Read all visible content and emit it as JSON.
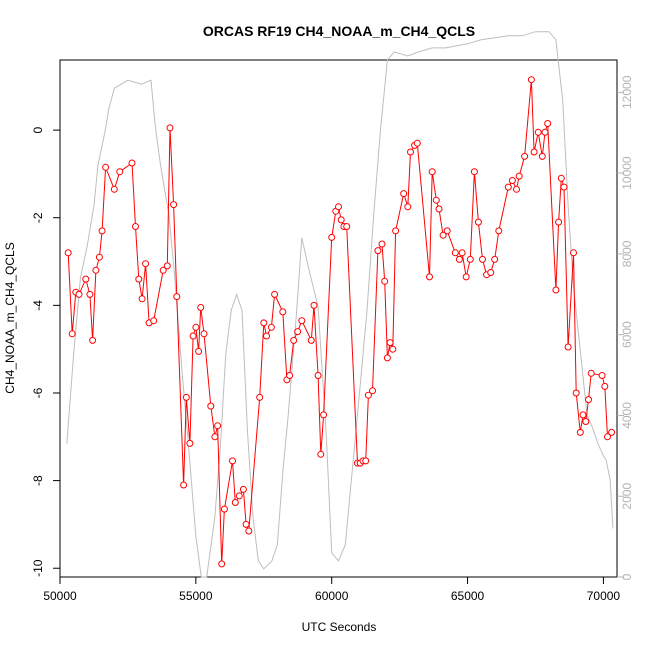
{
  "chart_data": {
    "type": "line",
    "title": "ORCAS RF19 CH4_NOAA_m_CH4_QCLS",
    "xlabel": "UTC Seconds",
    "ylabel": "CH4_NOAA_m_CH4_QCLS",
    "xlim": [
      50000,
      70500
    ],
    "ylim": [
      -10.2,
      1.6
    ],
    "y2lim": [
      0,
      12800
    ],
    "x_ticks": [
      50000,
      55000,
      60000,
      65000,
      70000
    ],
    "y_ticks": [
      0,
      -2,
      -4,
      -6,
      -8,
      -10
    ],
    "y2_ticks": [
      0,
      2000,
      4000,
      6000,
      8000,
      10000,
      12000
    ],
    "colors": {
      "series": "#ff0000",
      "secondary": "#bebebe"
    },
    "series": [
      {
        "values_xy": [
          [
            50300,
            -2.8
          ],
          [
            50450,
            -4.65
          ],
          [
            50580,
            -3.7
          ],
          [
            50700,
            -3.75
          ],
          [
            50950,
            -3.4
          ],
          [
            51100,
            -3.75
          ],
          [
            51200,
            -4.8
          ],
          [
            51320,
            -3.2
          ],
          [
            51450,
            -2.9
          ],
          [
            51550,
            -2.3
          ],
          [
            51680,
            -0.85
          ],
          [
            52000,
            -1.35
          ],
          [
            52200,
            -0.95
          ],
          [
            52650,
            -0.75
          ],
          [
            52780,
            -2.2
          ],
          [
            52900,
            -3.4
          ],
          [
            53020,
            -3.85
          ],
          [
            53150,
            -3.05
          ],
          [
            53280,
            -4.4
          ],
          [
            53450,
            -4.35
          ],
          [
            53800,
            -3.2
          ],
          [
            53950,
            -3.1
          ],
          [
            54050,
            0.05
          ],
          [
            54180,
            -1.7
          ],
          [
            54300,
            -3.8
          ],
          [
            54550,
            -8.1
          ],
          [
            54650,
            -6.1
          ],
          [
            54780,
            -7.15
          ],
          [
            54900,
            -4.7
          ],
          [
            55000,
            -4.5
          ],
          [
            55100,
            -5.05
          ],
          [
            55180,
            -4.05
          ],
          [
            55300,
            -4.65
          ],
          [
            55550,
            -6.3
          ],
          [
            55700,
            -7.0
          ],
          [
            55800,
            -6.75
          ],
          [
            55950,
            -9.9
          ],
          [
            56050,
            -8.65
          ],
          [
            56350,
            -7.55
          ],
          [
            56450,
            -8.5
          ],
          [
            56600,
            -8.35
          ],
          [
            56750,
            -8.2
          ],
          [
            56850,
            -9.0
          ],
          [
            56950,
            -9.15
          ],
          [
            57350,
            -6.1
          ],
          [
            57500,
            -4.4
          ],
          [
            57600,
            -4.7
          ],
          [
            57780,
            -4.5
          ],
          [
            57900,
            -3.75
          ],
          [
            58200,
            -4.15
          ],
          [
            58350,
            -5.7
          ],
          [
            58450,
            -5.6
          ],
          [
            58600,
            -4.8
          ],
          [
            58750,
            -4.6
          ],
          [
            58900,
            -4.35
          ],
          [
            59250,
            -4.8
          ],
          [
            59350,
            -4.0
          ],
          [
            59500,
            -5.6
          ],
          [
            59600,
            -7.4
          ],
          [
            59700,
            -6.5
          ],
          [
            60000,
            -2.45
          ],
          [
            60150,
            -1.85
          ],
          [
            60250,
            -1.75
          ],
          [
            60350,
            -2.05
          ],
          [
            60450,
            -2.2
          ],
          [
            60550,
            -2.2
          ],
          [
            60950,
            -7.6
          ],
          [
            61050,
            -7.6
          ],
          [
            61150,
            -7.55
          ],
          [
            61250,
            -7.55
          ],
          [
            61350,
            -6.05
          ],
          [
            61500,
            -5.95
          ],
          [
            61700,
            -2.75
          ],
          [
            61850,
            -2.6
          ],
          [
            61950,
            -3.45
          ],
          [
            62050,
            -5.2
          ],
          [
            62150,
            -4.85
          ],
          [
            62250,
            -5.0
          ],
          [
            62350,
            -2.3
          ],
          [
            62650,
            -1.45
          ],
          [
            62800,
            -1.75
          ],
          [
            62900,
            -0.5
          ],
          [
            63050,
            -0.35
          ],
          [
            63150,
            -0.3
          ],
          [
            63600,
            -3.35
          ],
          [
            63700,
            -0.95
          ],
          [
            63850,
            -1.6
          ],
          [
            63950,
            -1.8
          ],
          [
            64100,
            -2.4
          ],
          [
            64250,
            -2.3
          ],
          [
            64550,
            -2.8
          ],
          [
            64700,
            -2.95
          ],
          [
            64800,
            -2.8
          ],
          [
            64950,
            -3.35
          ],
          [
            65100,
            -2.95
          ],
          [
            65250,
            -0.95
          ],
          [
            65400,
            -2.1
          ],
          [
            65550,
            -2.95
          ],
          [
            65700,
            -3.3
          ],
          [
            65850,
            -3.25
          ],
          [
            66000,
            -2.95
          ],
          [
            66150,
            -2.3
          ],
          [
            66500,
            -1.3
          ],
          [
            66650,
            -1.15
          ],
          [
            66800,
            -1.35
          ],
          [
            66900,
            -1.05
          ],
          [
            67100,
            -0.6
          ],
          [
            67350,
            1.15
          ],
          [
            67450,
            -0.5
          ],
          [
            67600,
            -0.05
          ],
          [
            67750,
            -0.6
          ],
          [
            67850,
            -0.05
          ],
          [
            67950,
            0.15
          ],
          [
            68250,
            -3.65
          ],
          [
            68350,
            -2.1
          ],
          [
            68450,
            -1.1
          ],
          [
            68550,
            -1.3
          ],
          [
            68700,
            -4.95
          ],
          [
            68900,
            -2.8
          ],
          [
            69000,
            -6.0
          ],
          [
            69150,
            -6.9
          ],
          [
            69250,
            -6.5
          ],
          [
            69350,
            -6.65
          ],
          [
            69450,
            -6.15
          ],
          [
            69550,
            -5.55
          ],
          [
            69950,
            -5.6
          ],
          [
            70050,
            -5.85
          ],
          [
            70150,
            -7.0
          ],
          [
            70300,
            -6.9
          ]
        ]
      },
      {
        "axis": "right",
        "values_xy": [
          [
            50250,
            3300
          ],
          [
            50500,
            5500
          ],
          [
            50750,
            7400
          ],
          [
            51000,
            8200
          ],
          [
            51250,
            9200
          ],
          [
            51400,
            10200
          ],
          [
            51650,
            11000
          ],
          [
            51800,
            11600
          ],
          [
            52000,
            12100
          ],
          [
            52500,
            12300
          ],
          [
            53000,
            12200
          ],
          [
            53350,
            12300
          ],
          [
            53500,
            11200
          ],
          [
            53700,
            10200
          ],
          [
            54000,
            9000
          ],
          [
            54200,
            7600
          ],
          [
            54500,
            5000
          ],
          [
            54700,
            3500
          ],
          [
            55000,
            1000
          ],
          [
            55200,
            0
          ],
          [
            55400,
            0
          ],
          [
            55700,
            1500
          ],
          [
            55900,
            3200
          ],
          [
            56100,
            5500
          ],
          [
            56300,
            6600
          ],
          [
            56500,
            7000
          ],
          [
            56700,
            6600
          ],
          [
            56900,
            3600
          ],
          [
            57100,
            1500
          ],
          [
            57300,
            400
          ],
          [
            57500,
            200
          ],
          [
            57800,
            400
          ],
          [
            58000,
            800
          ],
          [
            58200,
            2600
          ],
          [
            58400,
            4000
          ],
          [
            58700,
            6500
          ],
          [
            58900,
            8400
          ],
          [
            59200,
            7500
          ],
          [
            59500,
            6700
          ],
          [
            59800,
            3500
          ],
          [
            60000,
            600
          ],
          [
            60250,
            400
          ],
          [
            60500,
            800
          ],
          [
            60750,
            2600
          ],
          [
            61000,
            4400
          ],
          [
            61300,
            6600
          ],
          [
            61550,
            9000
          ],
          [
            61800,
            11100
          ],
          [
            62050,
            12800
          ],
          [
            62300,
            13000
          ],
          [
            62800,
            12900
          ],
          [
            63200,
            13000
          ],
          [
            63700,
            13100
          ],
          [
            64200,
            13100
          ],
          [
            65000,
            13200
          ],
          [
            65500,
            13300
          ],
          [
            66500,
            13400
          ],
          [
            67000,
            13400
          ],
          [
            67500,
            13500
          ],
          [
            68000,
            13500
          ],
          [
            68250,
            13300
          ],
          [
            68500,
            11800
          ],
          [
            68700,
            9200
          ],
          [
            68900,
            7200
          ],
          [
            69150,
            5600
          ],
          [
            69400,
            4000
          ],
          [
            69600,
            3700
          ],
          [
            69800,
            3300
          ],
          [
            70000,
            3000
          ],
          [
            70100,
            2900
          ],
          [
            70250,
            2400
          ],
          [
            70350,
            1200
          ]
        ]
      }
    ]
  }
}
